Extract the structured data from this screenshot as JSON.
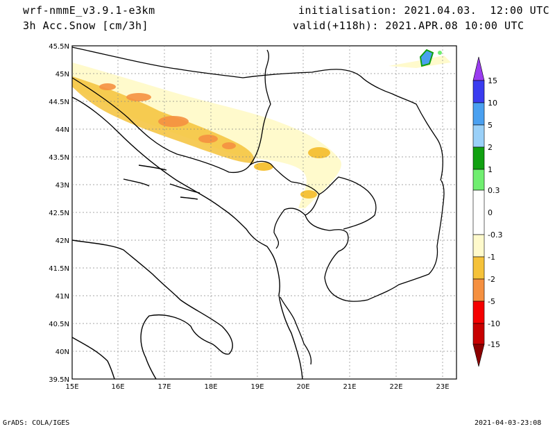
{
  "header": {
    "model": "wrf-nmmE_v3.9.1-e3km",
    "variable": "3h Acc.Snow [cm/3h]",
    "initialisation": "initialisation: 2021.04.03.  12:00 UTC",
    "valid": "valid(+118h): 2021.APR.08 10:00 UTC"
  },
  "footer": {
    "left": "GrADS: COLA/IGES",
    "right": "2021-04-03-23:08"
  },
  "map": {
    "lat_labels": [
      "45.5N",
      "45N",
      "44.5N",
      "44N",
      "43.5N",
      "43N",
      "42.5N",
      "42N",
      "41.5N",
      "41N",
      "40.5N",
      "40N",
      "39.5N"
    ],
    "lon_labels": [
      "15E",
      "16E",
      "17E",
      "18E",
      "19E",
      "20E",
      "21E",
      "22E",
      "23E"
    ]
  },
  "colorbar": {
    "labels": [
      "15",
      "10",
      "5",
      "2",
      "1",
      "0.3",
      "0",
      "-0.3",
      "-1",
      "-2",
      "-5",
      "-10",
      "-15"
    ],
    "colors": [
      "#9a3cf0",
      "#3a3cf0",
      "#4aa0f0",
      "#9ad0f8",
      "#10a010",
      "#70ee70",
      "#ffffff",
      "#fffacc",
      "#f5c23a",
      "#f59040",
      "#f50000",
      "#c80000",
      "#8c0000"
    ]
  }
}
